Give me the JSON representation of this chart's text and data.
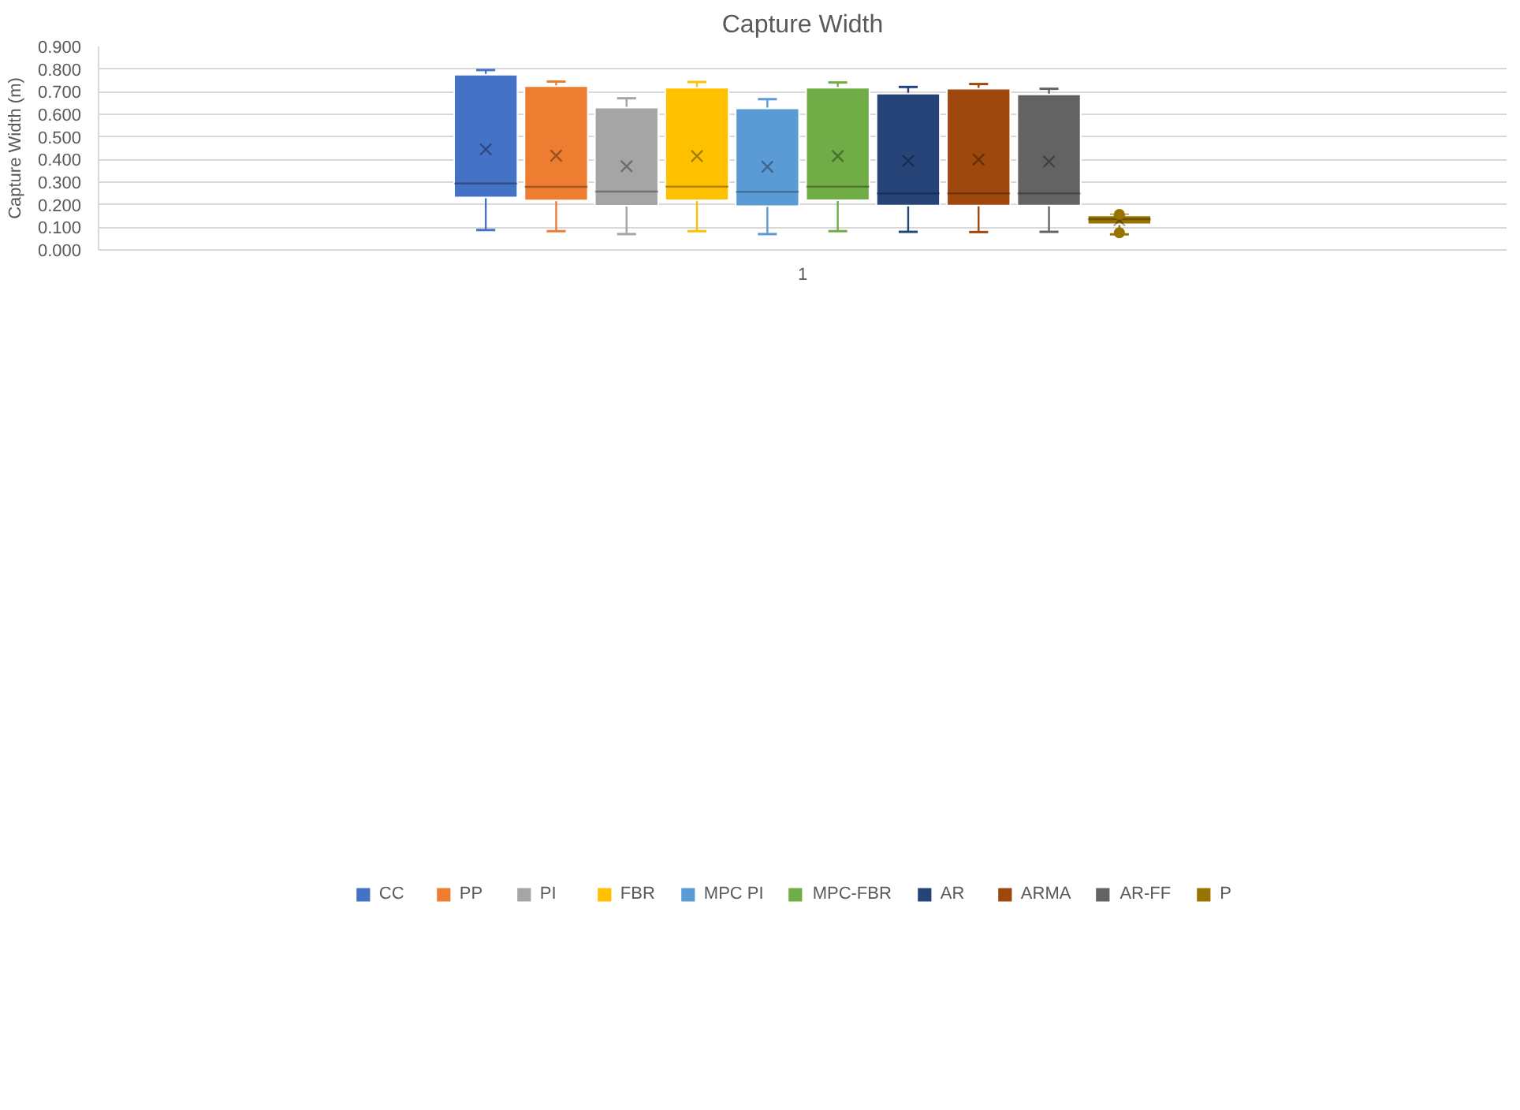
{
  "chart_data": {
    "type": "box",
    "title": "Capture Width",
    "ylabel": "Capture Width (m)",
    "categories": [
      "1"
    ],
    "ylim": [
      0,
      0.9
    ],
    "yticks": [
      {
        "value": 0,
        "label": "0.000"
      },
      {
        "value": 0.1,
        "label": "0.100"
      },
      {
        "value": 0.2,
        "label": "0.200"
      },
      {
        "value": 0.3,
        "label": "0.300"
      },
      {
        "value": 0.4,
        "label": "0.400"
      },
      {
        "value": 0.5,
        "label": "0.500"
      },
      {
        "value": 0.6,
        "label": "0.600"
      },
      {
        "value": 0.7,
        "label": "0.700"
      },
      {
        "value": 0.8,
        "label": "0.800"
      },
      {
        "value": 0.9,
        "label": "0.900"
      }
    ],
    "grid": "y",
    "legend": "bottom",
    "series": [
      {
        "name": "CC",
        "color": "#4472c4",
        "boxes": [
          {
            "low": 0.088,
            "q1": 0.232,
            "median": 0.294,
            "q3": 0.775,
            "high": 0.796,
            "mean": 0.445
          }
        ]
      },
      {
        "name": "PP",
        "color": "#ed7d31",
        "boxes": [
          {
            "low": 0.083,
            "q1": 0.219,
            "median": 0.279,
            "q3": 0.725,
            "high": 0.745,
            "mean": 0.417
          }
        ]
      },
      {
        "name": "PI",
        "color": "#a5a5a5",
        "boxes": [
          {
            "low": 0.07,
            "q1": 0.195,
            "median": 0.258,
            "q3": 0.63,
            "high": 0.671,
            "mean": 0.37
          }
        ]
      },
      {
        "name": "FBR",
        "color": "#ffc000",
        "boxes": [
          {
            "low": 0.083,
            "q1": 0.22,
            "median": 0.28,
            "q3": 0.718,
            "high": 0.743,
            "mean": 0.415
          }
        ]
      },
      {
        "name": "MPC PI",
        "color": "#5b9bd5",
        "boxes": [
          {
            "low": 0.07,
            "q1": 0.194,
            "median": 0.257,
            "q3": 0.626,
            "high": 0.667,
            "mean": 0.368
          }
        ]
      },
      {
        "name": "MPC-FBR",
        "color": "#70ad47",
        "boxes": [
          {
            "low": 0.083,
            "q1": 0.22,
            "median": 0.28,
            "q3": 0.718,
            "high": 0.741,
            "mean": 0.415
          }
        ]
      },
      {
        "name": "AR",
        "color": "#264478",
        "boxes": [
          {
            "low": 0.08,
            "q1": 0.196,
            "median": 0.25,
            "q3": 0.692,
            "high": 0.721,
            "mean": 0.394
          }
        ]
      },
      {
        "name": "ARMA",
        "color": "#9e480e",
        "boxes": [
          {
            "low": 0.079,
            "q1": 0.196,
            "median": 0.25,
            "q3": 0.713,
            "high": 0.734,
            "mean": 0.4
          }
        ]
      },
      {
        "name": "AR-FF",
        "color": "#636363",
        "boxes": [
          {
            "low": 0.08,
            "q1": 0.196,
            "median": 0.25,
            "q3": 0.688,
            "high": 0.713,
            "mean": 0.391
          }
        ]
      },
      {
        "name": "P",
        "color": "#997300",
        "boxes": [
          {
            "low": 0.069,
            "q1": 0.113,
            "median": 0.136,
            "q3": 0.153,
            "high": 0.155,
            "mean": 0.131,
            "outliers": [
              0.157,
              0.076
            ]
          }
        ]
      }
    ]
  }
}
